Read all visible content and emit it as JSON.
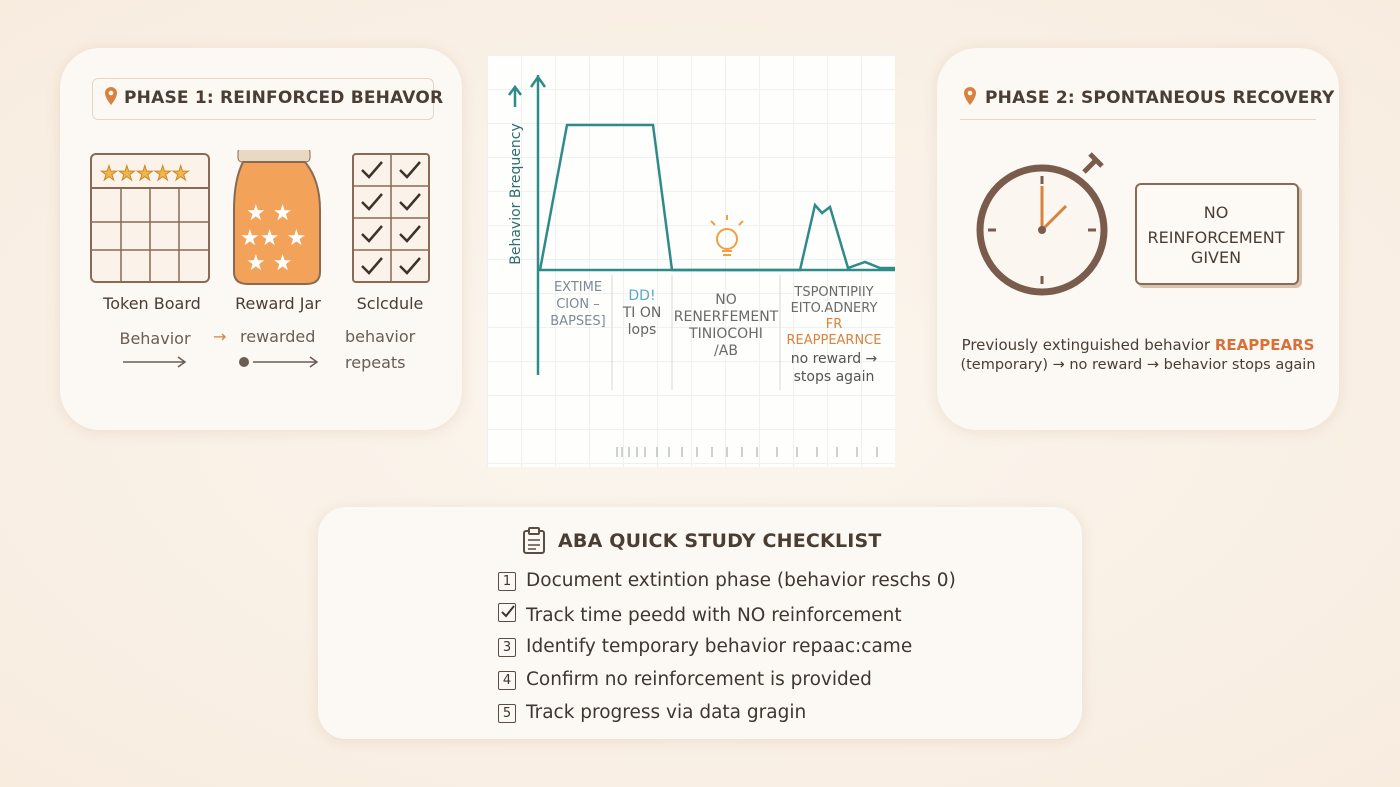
{
  "phase1": {
    "title": "PHASE 1: REINFORCED BEHAVOR",
    "items": [
      "Token Board",
      "Reward Jar",
      "Sclcdule"
    ],
    "flow": {
      "behavior": "Behavior",
      "rewarded": "rewarded",
      "repeats": [
        "behavior",
        "repeats"
      ]
    }
  },
  "graph": {
    "y_label": "Behavior Brequency",
    "phases": [
      [
        "EXTIME",
        "CION –",
        "BAPSES]"
      ],
      [
        "DD!",
        "TI ON",
        "lops"
      ],
      [
        "NO",
        "RENERFEMENT",
        "TINIOCOHI",
        "/AB"
      ],
      [
        "TSPONTIPIIY",
        "EITO.ADNERY",
        "FR",
        "REAPPEARNCE",
        "no reward →",
        "stops again"
      ]
    ]
  },
  "phase2": {
    "title": "PHASE 2: SPONTANEOUS RECOVERY",
    "box": [
      "NO",
      "REINFORCEMENT",
      "GIVEN"
    ],
    "description": {
      "before": "Previously extinguished behavior",
      "emphasis": "REAPPEARS",
      "after": "(temporary) → no reward → behavior stops again"
    }
  },
  "checklist": {
    "title": "ABA QUICK STUDY CHECKLIST",
    "items": [
      {
        "marker": "1",
        "text": "Document extintion phase (behavior reschs 0)"
      },
      {
        "text": "Track time peedd with NO reinforcement"
      },
      {
        "marker": "3",
        "text": "Identify temporary behavior repaac:came"
      },
      {
        "marker": "4",
        "text": "Confirm no reinforcement is provided"
      },
      {
        "marker": "5",
        "text": "Track progress via data gragin"
      }
    ]
  }
}
